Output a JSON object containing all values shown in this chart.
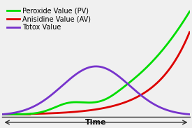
{
  "xlabel": "Time",
  "background_color": "#f0f0f0",
  "pv_color": "#00dd00",
  "av_color": "#dd0000",
  "totox_color": "#7733cc",
  "legend_labels": [
    "Peroxide Value (PV)",
    "Anisidine Value (AV)",
    "Totox Value"
  ],
  "line_width": 2.0,
  "xlabel_fontsize": 8,
  "legend_fontsize": 7.0
}
